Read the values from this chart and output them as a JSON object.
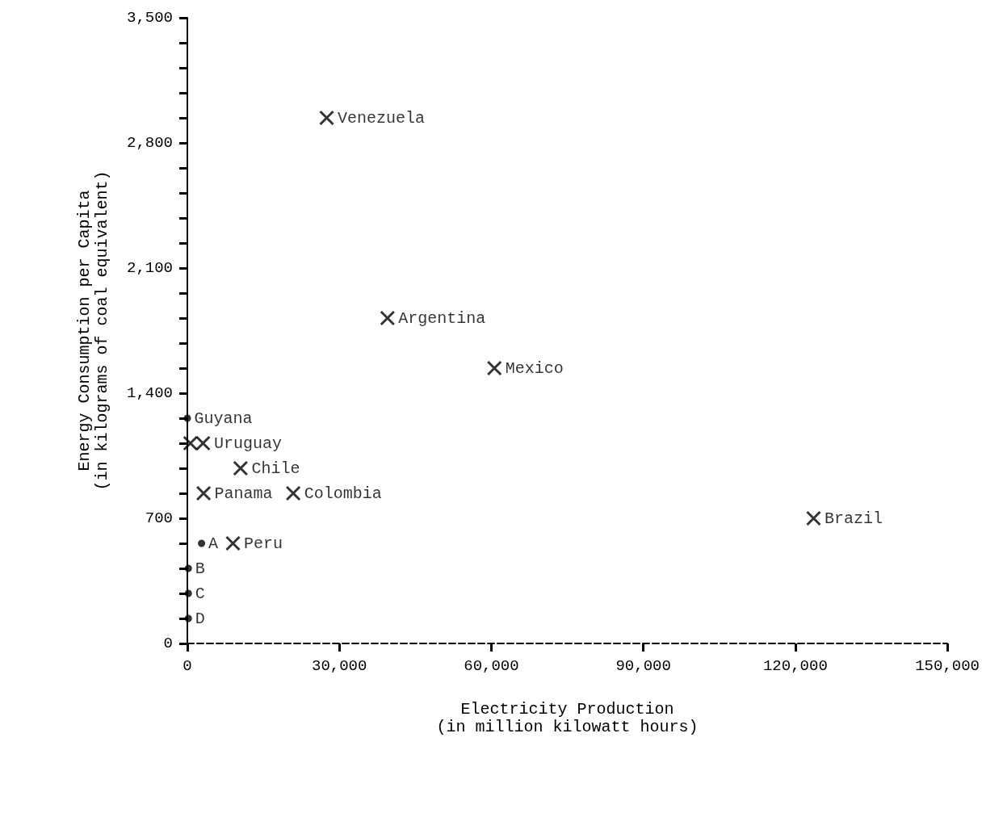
{
  "chart_data": {
    "type": "scatter",
    "xlabel": "Electricity Production\n(in million kilowatt hours)",
    "ylabel": "Energy Consumption per Capita\n(in kilograms of coal equivalent)",
    "x": [
      27500,
      39500,
      60600,
      600,
      3100,
      10500,
      3200,
      20900,
      123600,
      9000
    ],
    "values": [
      2940,
      1820,
      1540,
      1120,
      1120,
      980,
      840,
      840,
      700,
      560
    ],
    "value_labels": [
      "Venezuela",
      "Argentina",
      "Mexico",
      null,
      "Uruguay",
      "Chile",
      "Panama",
      "Colombia",
      "Brazil",
      "Peru"
    ],
    "color": "#000000",
    "marker": "cross",
    "grid": false,
    "series": [
      {
        "x": [
          0,
          2800,
          200,
          200,
          200
        ],
        "values": [
          1260,
          560,
          420,
          280,
          140
        ],
        "value_labels": [
          "Guyana",
          "A",
          "B",
          "C",
          "D"
        ],
        "color": "#000000",
        "marker": "circle"
      }
    ],
    "xlim": [
      0,
      150000
    ],
    "xticks": [
      0,
      {
        "value": 30000,
        "label": "30,000"
      },
      {
        "value": 60000,
        "label": "60,000"
      },
      {
        "value": 90000,
        "label": "90,000"
      },
      {
        "value": 120000,
        "label": "120,000"
      },
      {
        "value": 150000,
        "label": "150,000"
      }
    ],
    "ylim": [
      0,
      3500
    ],
    "yticks": [
      0,
      {
        "value": 140,
        "label": null
      },
      {
        "value": 280,
        "label": null
      },
      {
        "value": 420,
        "label": null
      },
      {
        "value": 560,
        "label": null
      },
      700,
      {
        "value": 840,
        "label": null
      },
      {
        "value": 980,
        "label": null
      },
      {
        "value": 1120,
        "label": null
      },
      {
        "value": 1260,
        "label": null
      },
      {
        "value": 1400,
        "label": "1,400"
      },
      {
        "value": 1540,
        "label": null
      },
      {
        "value": 1680,
        "label": null
      },
      {
        "value": 1820,
        "label": null
      },
      {
        "value": 1960,
        "label": null
      },
      {
        "value": 2100,
        "label": "2,100"
      },
      {
        "value": 2240,
        "label": null
      },
      {
        "value": 2380,
        "label": null
      },
      {
        "value": 2520,
        "label": null
      },
      {
        "value": 2660,
        "label": null
      },
      {
        "value": 2800,
        "label": "2,800"
      },
      {
        "value": 2940,
        "label": null
      },
      {
        "value": 3080,
        "label": null
      },
      {
        "value": 3220,
        "label": null
      },
      {
        "value": 3360,
        "label": null
      },
      {
        "value": 3500,
        "label": "3,500"
      }
    ]
  }
}
